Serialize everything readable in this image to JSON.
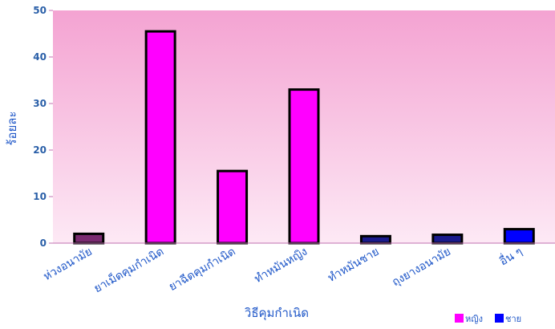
{
  "chart_data": {
    "type": "bar",
    "title": "",
    "xlabel": "วิธีคุมกำเนิด",
    "ylabel": "ร้อยละ",
    "ylim": [
      0,
      50
    ],
    "yticks": [
      0,
      10,
      20,
      30,
      40,
      50
    ],
    "grid": false,
    "legend_position": "bottom-right",
    "categories": [
      "ห่วงอนามัย",
      "ยาเม็ดคุมกำเนิด",
      "ยาฉีดคุมกำเนิด",
      "ทำหมันหญิง",
      "ทำหมันชาย",
      "ถุงยางอนามัย",
      "อื่น ๆ"
    ],
    "values": [
      2,
      45.5,
      15.5,
      33,
      1.5,
      1.8,
      3
    ],
    "bar_colors": [
      "#7a2a70",
      "#ff00ff",
      "#ff00ff",
      "#ff00ff",
      "#1a1a8c",
      "#1a1a8c",
      "#0000ff"
    ],
    "legend": [
      {
        "label": "หญิง",
        "color": "#ff00ff"
      },
      {
        "label": "ชาย",
        "color": "#0000ff"
      }
    ],
    "colors": {
      "plot_bg_top": "#f4a3d2",
      "plot_bg_bottom": "#fde9f5",
      "text": "#1f57c8",
      "bar_outline": "#000000"
    }
  }
}
